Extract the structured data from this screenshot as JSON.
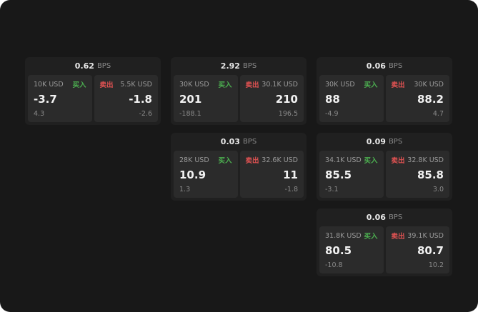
{
  "colors": {
    "buy_green": "#4caf50",
    "sell_red": "#e05252",
    "screen_bg": "#181818",
    "card_bg": "#202020",
    "panel_bg": "#2b2b2b"
  },
  "cards": [
    {
      "spread": "0.62",
      "bps_label": "BPS",
      "buy": {
        "size": "10K USD",
        "label": "买入",
        "price": "-3.7",
        "delta": "4.3"
      },
      "sell": {
        "label": "卖出",
        "size": "5.5K USD",
        "price": "-1.8",
        "delta": "-2.6"
      }
    },
    {
      "spread": "2.92",
      "bps_label": "BPS",
      "buy": {
        "size": "30K USD",
        "label": "买入",
        "price": "201",
        "delta": "-188.1"
      },
      "sell": {
        "label": "卖出",
        "size": "30.1K USD",
        "price": "210",
        "delta": "196.5"
      }
    },
    {
      "spread": "0.06",
      "bps_label": "BPS",
      "buy": {
        "size": "30K USD",
        "label": "买入",
        "price": "88",
        "delta": "-4.9"
      },
      "sell": {
        "label": "卖出",
        "size": "30K USD",
        "price": "88.2",
        "delta": "4.7"
      }
    },
    {
      "spread": "0.03",
      "bps_label": "BPS",
      "buy": {
        "size": "28K USD",
        "label": "买入",
        "price": "10.9",
        "delta": "1.3"
      },
      "sell": {
        "label": "卖出",
        "size": "32.6K USD",
        "price": "11",
        "delta": "-1.8"
      }
    },
    {
      "spread": "0.09",
      "bps_label": "BPS",
      "buy": {
        "size": "34.1K USD",
        "label": "买入",
        "price": "85.5",
        "delta": "-3.1"
      },
      "sell": {
        "label": "卖出",
        "size": "32.8K USD",
        "price": "85.8",
        "delta": "3.0"
      }
    },
    {
      "spread": "0.06",
      "bps_label": "BPS",
      "buy": {
        "size": "31.8K USD",
        "label": "买入",
        "price": "80.5",
        "delta": "-10.8"
      },
      "sell": {
        "label": "卖出",
        "size": "39.1K USD",
        "price": "80.7",
        "delta": "10.2"
      }
    }
  ]
}
